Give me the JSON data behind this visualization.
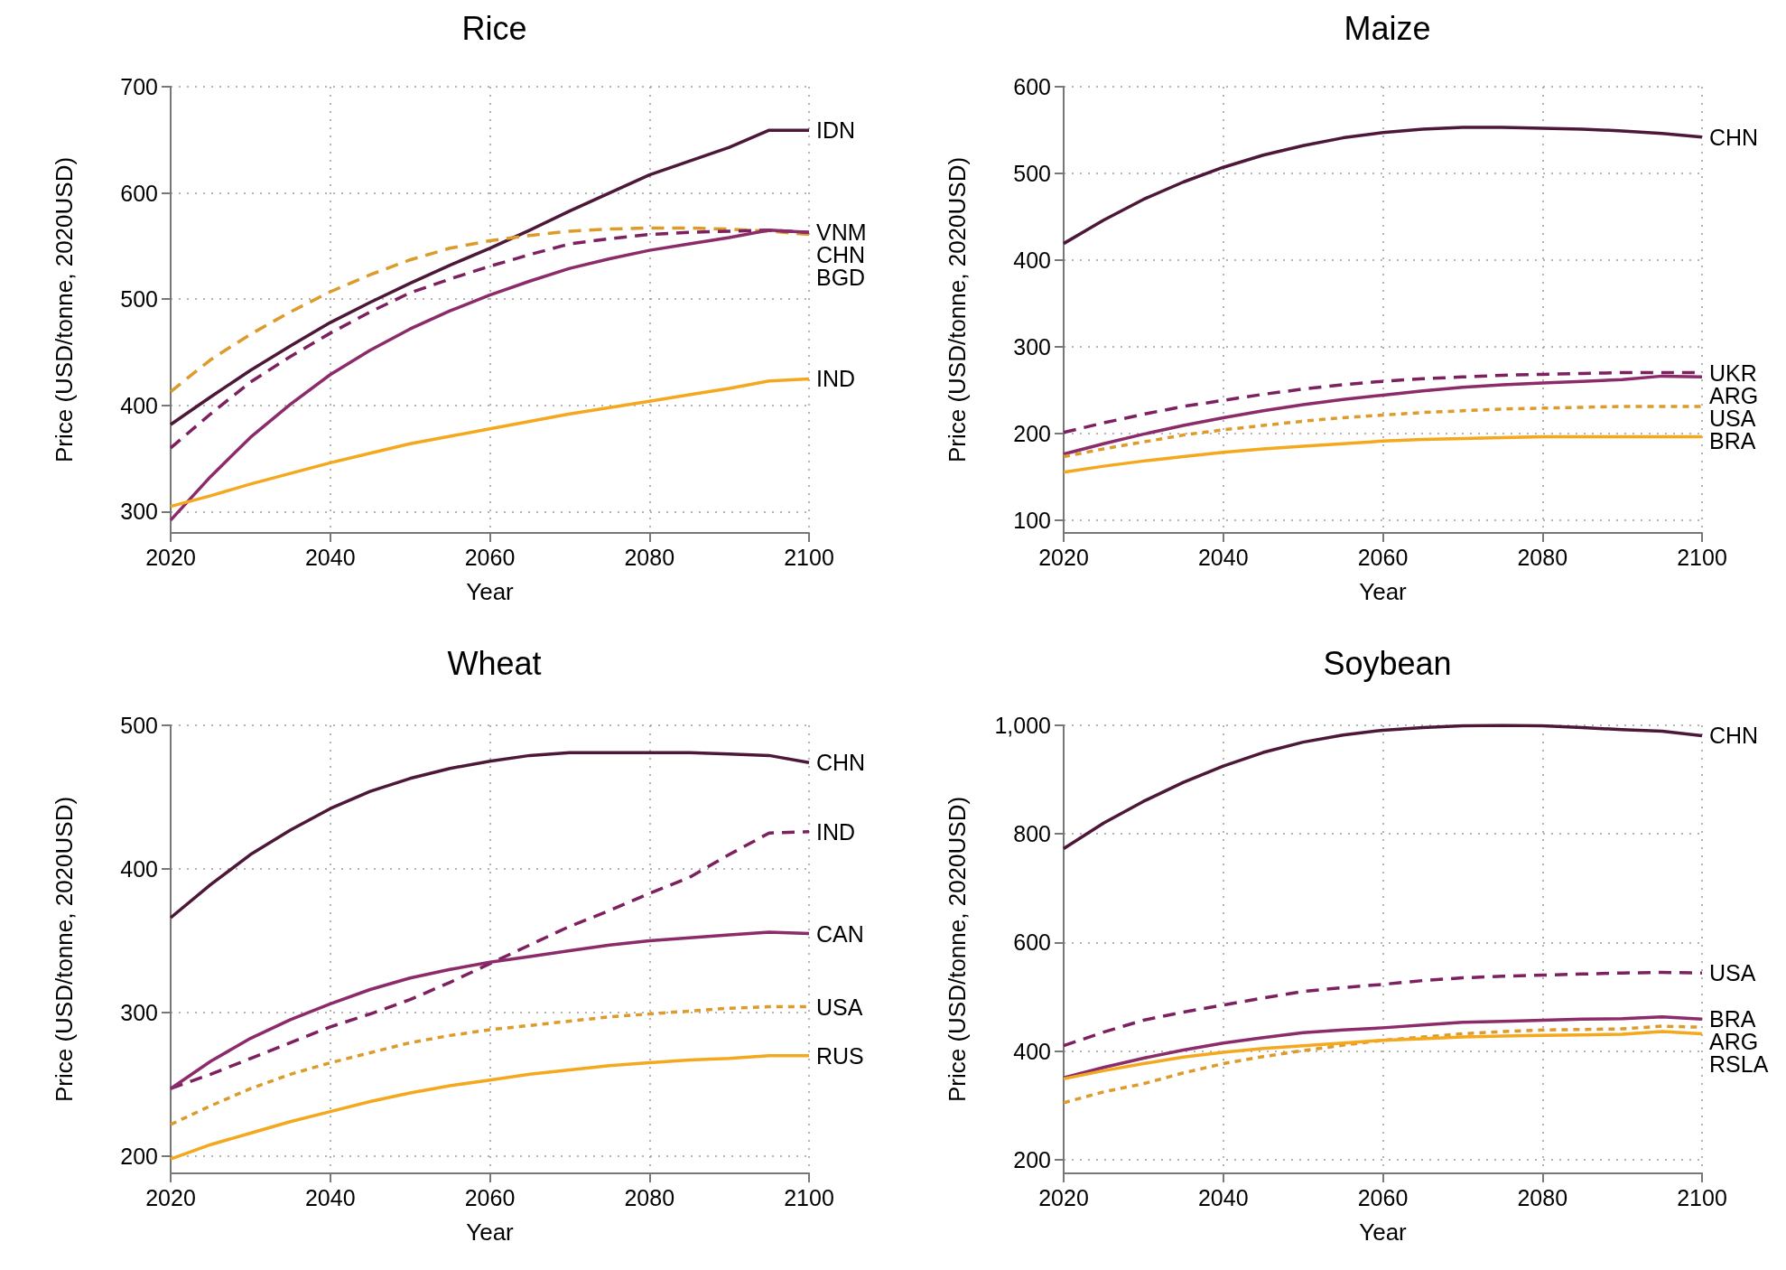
{
  "chart_data": [
    {
      "type": "line",
      "title": "Rice",
      "xlabel": "Year",
      "ylabel": "Price (USD/tonne, 2020USD)",
      "x": [
        2020,
        2025,
        2030,
        2035,
        2040,
        2045,
        2050,
        2055,
        2060,
        2065,
        2070,
        2075,
        2080,
        2085,
        2090,
        2095,
        2100
      ],
      "xlim": [
        2020,
        2100
      ],
      "xticks": [
        2020,
        2040,
        2060,
        2080,
        2100
      ],
      "ylim": [
        280,
        700
      ],
      "yticks": [
        300,
        400,
        500,
        600,
        700
      ],
      "grid": true,
      "marker": "none",
      "series": [
        {
          "name": "IDN",
          "color": "#4d1838",
          "line_style": "solid",
          "values": [
            382,
            408,
            433,
            456,
            478,
            497,
            515,
            532,
            548,
            565,
            583,
            600,
            617,
            630,
            643,
            659,
            659
          ]
        },
        {
          "name": "BGD",
          "color": "#dc9b2a",
          "line_style": "dashed",
          "values": [
            413,
            443,
            467,
            488,
            507,
            523,
            537,
            548,
            555,
            560,
            564,
            566,
            567,
            567,
            566,
            564,
            561
          ]
        },
        {
          "name": "VNM",
          "color": "#7d2060",
          "line_style": "dashed",
          "values": [
            360,
            392,
            422,
            446,
            468,
            488,
            506,
            519,
            531,
            542,
            552,
            557,
            561,
            563,
            564,
            565,
            563
          ]
        },
        {
          "name": "CHN",
          "color": "#8c2b6a",
          "line_style": "solid",
          "values": [
            292,
            333,
            370,
            401,
            429,
            452,
            472,
            489,
            504,
            517,
            529,
            538,
            546,
            552,
            558,
            565,
            563
          ]
        },
        {
          "name": "IND",
          "color": "#f4a81e",
          "line_style": "solid",
          "values": [
            305,
            315,
            326,
            336,
            346,
            355,
            364,
            371,
            378,
            385,
            392,
            398,
            404,
            410,
            416,
            423,
            425
          ]
        }
      ]
    },
    {
      "type": "line",
      "title": "Maize",
      "xlabel": "Year",
      "ylabel": "Price (USD/tonne, 2020USD)",
      "x": [
        2020,
        2025,
        2030,
        2035,
        2040,
        2045,
        2050,
        2055,
        2060,
        2065,
        2070,
        2075,
        2080,
        2085,
        2090,
        2095,
        2100
      ],
      "xlim": [
        2020,
        2100
      ],
      "xticks": [
        2020,
        2040,
        2060,
        2080,
        2100
      ],
      "ylim": [
        85,
        600
      ],
      "yticks": [
        100,
        200,
        300,
        400,
        500,
        600
      ],
      "grid": true,
      "marker": "none",
      "series": [
        {
          "name": "CHN",
          "color": "#4d1838",
          "line_style": "solid",
          "values": [
            419,
            446,
            470,
            490,
            507,
            521,
            532,
            541,
            547,
            551,
            553,
            553,
            552,
            551,
            549,
            546,
            542
          ]
        },
        {
          "name": "UKR",
          "color": "#7d2060",
          "line_style": "dashed",
          "values": [
            201,
            212,
            222,
            231,
            238,
            245,
            251,
            256,
            260,
            263,
            265,
            267,
            268,
            269,
            270,
            270,
            270
          ]
        },
        {
          "name": "ARG",
          "color": "#8c2b6a",
          "line_style": "solid",
          "values": [
            176,
            188,
            199,
            209,
            218,
            226,
            233,
            239,
            244,
            249,
            253,
            256,
            258,
            260,
            262,
            266,
            265
          ]
        },
        {
          "name": "USA",
          "color": "#dc9b2a",
          "line_style": "dashed",
          "values": [
            173,
            182,
            190,
            198,
            204,
            209,
            214,
            218,
            221,
            224,
            226,
            228,
            229,
            230,
            231,
            231,
            231
          ]
        },
        {
          "name": "BRA",
          "color": "#f4a81e",
          "line_style": "solid",
          "values": [
            155,
            162,
            168,
            173,
            178,
            182,
            185,
            188,
            191,
            193,
            194,
            195,
            196,
            196,
            196,
            196,
            196
          ]
        }
      ]
    },
    {
      "type": "line",
      "title": "Wheat",
      "xlabel": "Year",
      "ylabel": "Price (USD/tonne, 2020USD)",
      "x": [
        2020,
        2025,
        2030,
        2035,
        2040,
        2045,
        2050,
        2055,
        2060,
        2065,
        2070,
        2075,
        2080,
        2085,
        2090,
        2095,
        2100
      ],
      "xlim": [
        2020,
        2100
      ],
      "xticks": [
        2020,
        2040,
        2060,
        2080,
        2100
      ],
      "ylim": [
        188,
        500
      ],
      "yticks": [
        200,
        300,
        400,
        500
      ],
      "grid": true,
      "marker": "none",
      "series": [
        {
          "name": "CHN",
          "color": "#4d1838",
          "line_style": "solid",
          "values": [
            366,
            389,
            410,
            427,
            442,
            454,
            463,
            470,
            475,
            479,
            481,
            481,
            481,
            481,
            480,
            479,
            474
          ]
        },
        {
          "name": "IND",
          "color": "#7d2060",
          "line_style": "dashed",
          "values": [
            247,
            257,
            268,
            279,
            290,
            299,
            309,
            321,
            334,
            347,
            360,
            371,
            383,
            394,
            410,
            425,
            426
          ]
        },
        {
          "name": "CAN",
          "color": "#8c2b6a",
          "line_style": "solid",
          "values": [
            247,
            266,
            282,
            295,
            306,
            316,
            324,
            330,
            335,
            339,
            343,
            347,
            350,
            352,
            354,
            356,
            355
          ]
        },
        {
          "name": "USA",
          "color": "#dc9b2a",
          "line_style": "dashed",
          "values": [
            222,
            235,
            247,
            257,
            265,
            272,
            279,
            284,
            288,
            291,
            294,
            297,
            299,
            301,
            303,
            304,
            304
          ]
        },
        {
          "name": "RUS",
          "color": "#f4a81e",
          "line_style": "solid",
          "values": [
            198,
            208,
            216,
            224,
            231,
            238,
            244,
            249,
            253,
            257,
            260,
            263,
            265,
            267,
            268,
            270,
            270
          ]
        }
      ]
    },
    {
      "type": "line",
      "title": "Soybean",
      "xlabel": "Year",
      "ylabel": "Price (USD/tonne, 2020USD)",
      "x": [
        2020,
        2025,
        2030,
        2035,
        2040,
        2045,
        2050,
        2055,
        2060,
        2065,
        2070,
        2075,
        2080,
        2085,
        2090,
        2095,
        2100
      ],
      "xlim": [
        2020,
        2100
      ],
      "xticks": [
        2020,
        2040,
        2060,
        2080,
        2100
      ],
      "ylim": [
        175,
        1000
      ],
      "yticks": [
        200,
        400,
        600,
        800,
        {
          "value": 1000,
          "label": "1,000"
        }
      ],
      "grid": true,
      "marker": "none",
      "series": [
        {
          "name": "CHN",
          "color": "#4d1838",
          "line_style": "solid",
          "values": [
            773,
            820,
            860,
            895,
            925,
            950,
            969,
            982,
            991,
            996,
            999,
            1000,
            999,
            996,
            992,
            989,
            981
          ]
        },
        {
          "name": "USA",
          "color": "#7d2060",
          "line_style": "dashed",
          "values": [
            410,
            435,
            457,
            472,
            485,
            498,
            510,
            517,
            523,
            530,
            535,
            538,
            540,
            542,
            544,
            545,
            544
          ]
        },
        {
          "name": "BRA",
          "color": "#8c2b6a",
          "line_style": "solid",
          "values": [
            351,
            370,
            387,
            402,
            415,
            425,
            434,
            439,
            443,
            448,
            453,
            455,
            457,
            459,
            460,
            463,
            459
          ]
        },
        {
          "name": "ARG",
          "color": "#dc9b2a",
          "line_style": "dashed",
          "values": [
            305,
            325,
            340,
            360,
            377,
            390,
            401,
            411,
            420,
            426,
            432,
            436,
            439,
            440,
            441,
            446,
            444
          ]
        },
        {
          "name": "RSLA",
          "color": "#f4a81e",
          "line_style": "solid",
          "values": [
            349,
            364,
            377,
            389,
            398,
            405,
            410,
            415,
            420,
            423,
            426,
            428,
            429,
            430,
            431,
            436,
            432
          ]
        }
      ]
    }
  ]
}
